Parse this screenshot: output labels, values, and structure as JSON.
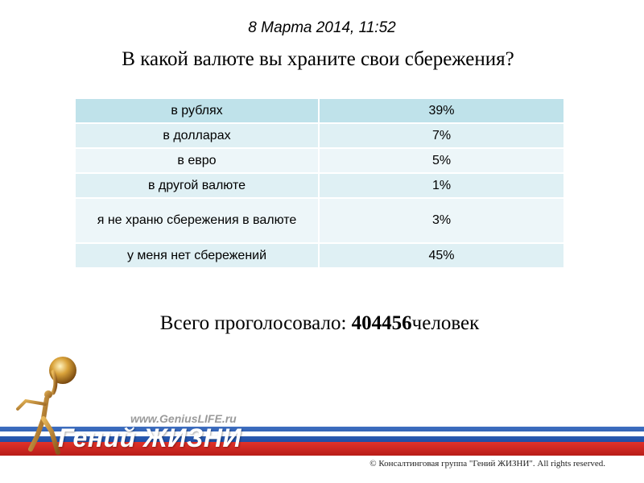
{
  "header": {
    "datetime": "8 Марта 2014, 11:52",
    "question": "В какой валюте вы храните свои сбережения?"
  },
  "results": {
    "rows": [
      {
        "answer": "в рублях",
        "percent": "39%"
      },
      {
        "answer": "в долларах",
        "percent": "7%"
      },
      {
        "answer": "в евро",
        "percent": "5%"
      },
      {
        "answer": "в другой валюте",
        "percent": "1%"
      },
      {
        "answer": "я не храню сбережения в валюте",
        "percent": "3%"
      },
      {
        "answer": "у меня нет сбережений",
        "percent": "45%"
      }
    ]
  },
  "total": {
    "prefix": "Всего проголосовало:",
    "count": "404456",
    "suffix": "человек"
  },
  "footer": {
    "site": "www.GeniusLIFE.ru",
    "brand": "Гений ЖИЗНИ",
    "copyright": "© Консалтинговая группа \"Гений ЖИЗНИ\". All rights reserved.",
    "colors": {
      "blue": "#2a5bb2",
      "red": "#d02a22",
      "gold": "#c8922a"
    }
  }
}
